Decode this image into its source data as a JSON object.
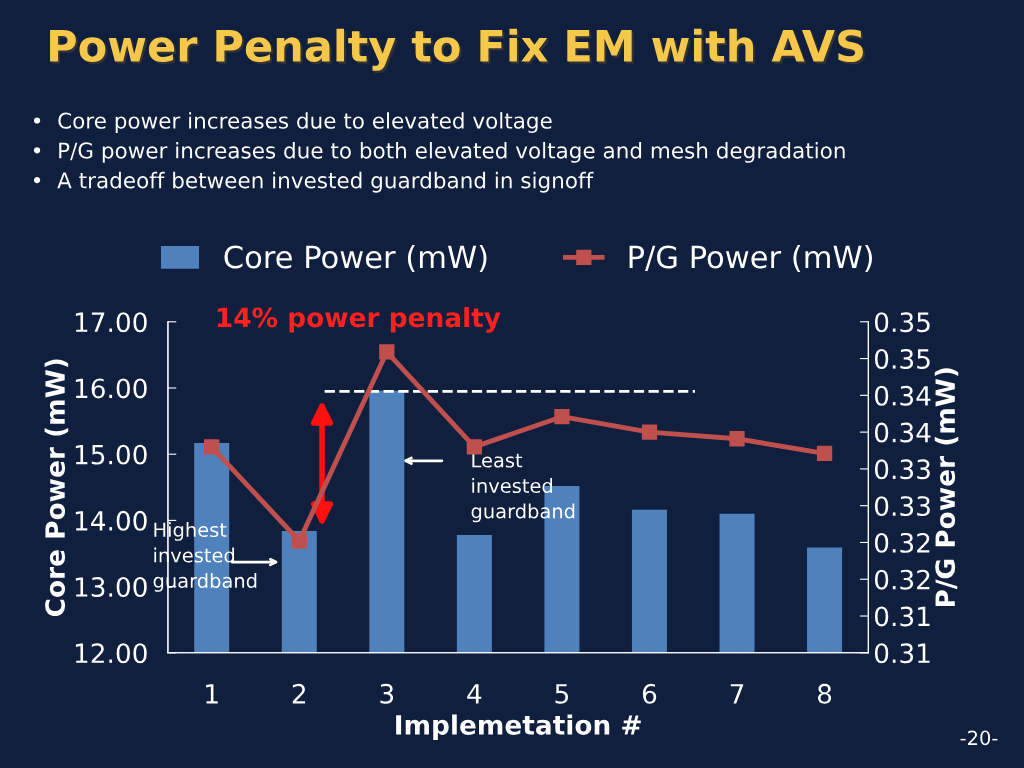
{
  "chart_data": {
    "type": "bar",
    "title": "Power Penalty to Fix EM with AVS",
    "subtitle": "•  Core power increases due to elevated voltage\n•  P/G power increases due to both elevated voltage and mesh degradation\n•  A tradeoff between invested guardband in signoff",
    "xlabel": "Implemetation #",
    "ylabel": "Core Power (mW)",
    "y2label": "P/G Power (mW)",
    "categories": [
      "1",
      "2",
      "3",
      "4",
      "5",
      "6",
      "7",
      "8"
    ],
    "series": [
      {
        "name": "Core Power (mW)",
        "color": "#4f81bd",
        "values": [
          15.17,
          13.84,
          15.96,
          13.78,
          14.52,
          14.16,
          14.1,
          13.59
        ]
      },
      {
        "name": "P/G Power (mW)",
        "type": "line",
        "axis": "y2",
        "color": "#c0504d",
        "marker": "square",
        "values": [
          0.333,
          0.3202,
          0.3459,
          0.333,
          0.3371,
          0.335,
          0.3341,
          0.3321
        ]
      }
    ],
    "ylim": [
      12,
      17
    ],
    "yticks": [
      {
        "value": 12,
        "label": "12.00"
      },
      {
        "value": 13,
        "label": "13.00"
      },
      {
        "value": 14,
        "label": "14.00"
      },
      {
        "value": 15,
        "label": "15.00"
      },
      {
        "value": 16,
        "label": "16.00"
      },
      {
        "value": 17,
        "label": "17.00"
      }
    ],
    "y2lim": [
      0.305,
      0.35
    ],
    "y2ticks": [
      {
        "value": 0.305,
        "label": "0.31"
      },
      {
        "value": 0.31,
        "label": "0.31"
      },
      {
        "value": 0.315,
        "label": "0.32"
      },
      {
        "value": 0.32,
        "label": "0.32"
      },
      {
        "value": 0.325,
        "label": "0.33"
      },
      {
        "value": 0.33,
        "label": "0.33"
      },
      {
        "value": 0.335,
        "label": "0.34"
      },
      {
        "value": 0.34,
        "label": "0.34"
      },
      {
        "value": 0.345,
        "label": "0.35"
      },
      {
        "value": 0.35,
        "label": "0.35"
      }
    ],
    "ref_lines": [
      {
        "axis": "y",
        "value": 15.95,
        "color": "#ffffff",
        "line_style": "dashed"
      }
    ],
    "legend": "top",
    "grid": false,
    "annotations": [
      "14% power penalty",
      "Least\ninvested\nguardband",
      "Highest\ninvested\nguardband",
      "-20-"
    ]
  }
}
